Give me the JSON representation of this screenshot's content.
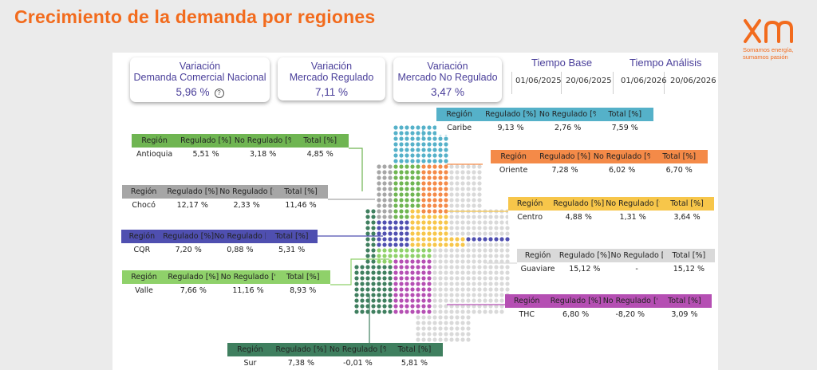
{
  "title": "Crecimiento de la demanda por regiones",
  "logo": {
    "icon": "xm-logo",
    "tagline": "Somamos energía,\nsumamos pasión"
  },
  "kpis": [
    {
      "label": "Variación\nDemanda Comercial Nacional",
      "value": "5,96 %",
      "help_icon": "question-icon",
      "help": "?"
    },
    {
      "label": "Variación\nMercado Regulado",
      "value": "7,11 %"
    },
    {
      "label": "Variación\nMercado No Regulado",
      "value": "3,47 %"
    }
  ],
  "periods": {
    "base": {
      "title": "Tiempo Base",
      "start": "01/06/2025",
      "end": "20/06/2025"
    },
    "analysis": {
      "title": "Tiempo Análisis",
      "start": "01/06/2026",
      "end": "20/06/2026"
    }
  },
  "headers": {
    "region": "Región",
    "regulado": "Regulado [%]",
    "no_regulado": "No Regulado [%]",
    "total": "Total [%]"
  },
  "colors": {
    "caribe": "#55b1c9",
    "antioquia": "#6fb552",
    "choco": "#a6a6a6",
    "cqr": "#4f4fb0",
    "valle": "#8fd16a",
    "oriente": "#f48a48",
    "centro": "#f7c64a",
    "guaviare": "#d9d9d9",
    "thc": "#b54fb3",
    "sur": "#3f7f5f"
  },
  "regions": [
    {
      "key": "caribe",
      "name": "Caribe",
      "regulado": "9,13 %",
      "no_regulado": "2,76 %",
      "total": "7,59 %"
    },
    {
      "key": "antioquia",
      "name": "Antioquia",
      "regulado": "5,51 %",
      "no_regulado": "3,18 %",
      "total": "4,85 %"
    },
    {
      "key": "choco",
      "name": "Chocó",
      "regulado": "12,17 %",
      "no_regulado": "2,33 %",
      "total": "11,46 %"
    },
    {
      "key": "cqr",
      "name": "CQR",
      "regulado": "7,20 %",
      "no_regulado": "0,88 %",
      "total": "5,31 %"
    },
    {
      "key": "valle",
      "name": "Valle",
      "regulado": "7,66 %",
      "no_regulado": "11,16 %",
      "total": "8,93 %"
    },
    {
      "key": "oriente",
      "name": "Oriente",
      "regulado": "7,28 %",
      "no_regulado": "6,02 %",
      "total": "6,70 %"
    },
    {
      "key": "centro",
      "name": "Centro",
      "regulado": "4,88 %",
      "no_regulado": "1,31 %",
      "total": "3,64 %"
    },
    {
      "key": "guaviare",
      "name": "Guaviare",
      "regulado": "15,12 %",
      "no_regulado": "-",
      "total": "15,12 %"
    },
    {
      "key": "thc",
      "name": "THC",
      "regulado": "6,80 %",
      "no_regulado": "-8,20 %",
      "total": "3,09 %"
    },
    {
      "key": "sur",
      "name": "Sur",
      "regulado": "7,38 %",
      "no_regulado": "-0,01 %",
      "total": "5,81 %"
    }
  ]
}
